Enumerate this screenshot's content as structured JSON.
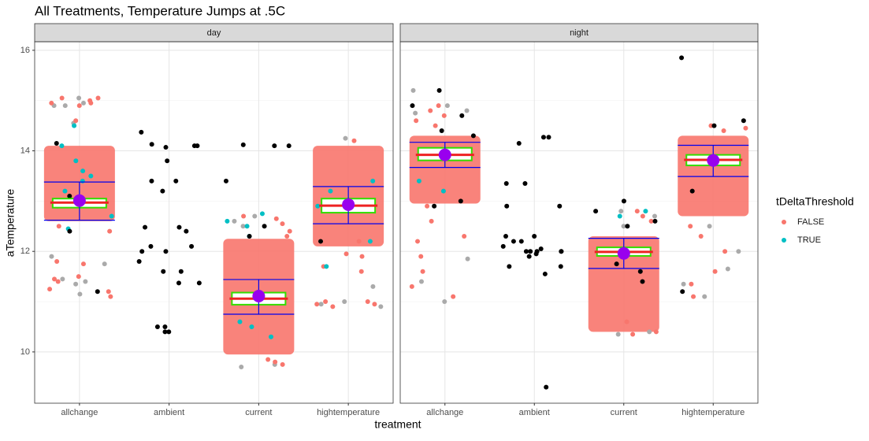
{
  "chart_data": {
    "type": "jitter-box",
    "title": "All Treatments, Temperature Jumps at .5C",
    "x_label": "treatment",
    "y_label": "aTemperature",
    "legend_title": "tDeltaThreshold",
    "series": [
      {
        "name": "FALSE",
        "color": "#F8766D"
      },
      {
        "name": "TRUE",
        "color": "#00BFC4"
      }
    ],
    "extra_colors": {
      "gray": "#aaaaaa",
      "black": "#000000"
    },
    "box_color": "#33dd00",
    "median_color": "#ee2222",
    "mean_color": "#9900ee",
    "errorbar_color": "#0000ee",
    "ylim": [
      8.98,
      16.17
    ],
    "yticks": [
      10,
      12,
      14,
      16
    ],
    "yminor": [
      11,
      13,
      15
    ],
    "grid": true,
    "panels": [
      {
        "label": "day",
        "groups": [
          {
            "category": "allchange",
            "box": [
              12.87,
              12.97,
              13.05
            ],
            "mean": 13.01,
            "errorbar": [
              12.62,
              13.38
            ],
            "spread": [
              12.6,
              14.1
            ],
            "false_points": [
              15.05,
              15.0,
              14.95,
              14.9,
              15.05,
              14.95,
              11.8,
              11.75,
              11.5,
              11.4,
              11.25,
              11.2,
              11.1,
              11.45,
              14.6,
              12.4,
              12.5
            ],
            "gray_points": [
              15.05,
              14.95,
              14.9,
              11.45,
              11.35,
              11.15,
              11.9,
              11.75,
              11.4,
              14.55,
              14.9
            ],
            "true_points": [
              14.5,
              13.6,
              13.5,
              13.2,
              12.9,
              12.7,
              13.8,
              14.1,
              13.4,
              12.45
            ],
            "black_points": [
              14.15,
              11.2,
              12.4,
              13.1
            ]
          },
          {
            "category": "ambient",
            "black_points": [
              14.37,
              14.1,
              14.13,
              14.1,
              13.8,
              13.4,
              13.4,
              13.2,
              12.4,
              12.48,
              12.48,
              12.1,
              12.0,
              12.0,
              11.8,
              11.6,
              11.6,
              11.37,
              11.37,
              10.5,
              10.5,
              10.4,
              10.4,
              12.1,
              14.07
            ]
          },
          {
            "category": "current",
            "box": [
              10.94,
              11.06,
              11.18
            ],
            "mean": 11.11,
            "errorbar": [
              10.75,
              11.44
            ],
            "spread": [
              9.95,
              12.25
            ],
            "false_points": [
              12.7,
              12.65,
              12.55,
              12.4,
              12.3,
              9.75,
              9.8,
              9.85
            ],
            "gray_points": [
              12.7,
              12.5,
              9.7,
              9.75,
              12.6
            ],
            "true_points": [
              12.75,
              12.6,
              12.5,
              12.3,
              10.6,
              10.5,
              10.3
            ],
            "black_points": [
              14.1,
              14.12,
              14.1,
              13.4,
              12.3,
              12.5
            ]
          },
          {
            "category": "hightemperature",
            "box": [
              12.77,
              12.91,
              13.05
            ],
            "mean": 12.93,
            "errorbar": [
              12.55,
              13.29
            ],
            "spread": [
              12.1,
              14.1
            ],
            "false_points": [
              14.2,
              11.95,
              11.7,
              11.0,
              10.95,
              10.9,
              10.95,
              11.0,
              11.9,
              11.6,
              12.2
            ],
            "gray_points": [
              11.0,
              10.95,
              10.9,
              14.25,
              11.3
            ],
            "true_points": [
              13.4,
              13.2,
              12.2,
              11.7,
              12.9
            ],
            "black_points": [
              12.2
            ]
          }
        ]
      },
      {
        "label": "night",
        "groups": [
          {
            "category": "allchange",
            "box": [
              13.81,
              13.92,
              14.06
            ],
            "mean": 13.92,
            "errorbar": [
              13.67,
              14.17
            ],
            "spread": [
              12.95,
              14.3
            ],
            "false_points": [
              14.8,
              14.7,
              14.6,
              14.5,
              12.9,
              12.6,
              12.3,
              11.9,
              11.6,
              11.3,
              11.1,
              12.2,
              14.9
            ],
            "gray_points": [
              15.2,
              14.9,
              14.8,
              11.85,
              11.4,
              11.0,
              14.75
            ],
            "true_points": [
              13.4,
              13.2
            ],
            "black_points": [
              15.2,
              14.9,
              14.7,
              14.4,
              13.0,
              12.9,
              14.3
            ]
          },
          {
            "category": "ambient",
            "black_points": [
              14.27,
              14.27,
              14.15,
              13.35,
              13.35,
              12.9,
              12.9,
              12.3,
              12.2,
              12.2,
              12.1,
              12.05,
              12.0,
              12.0,
              12.0,
              12.0,
              11.95,
              11.9,
              11.7,
              11.7,
              11.55,
              12.3,
              12.0,
              9.3
            ]
          },
          {
            "category": "current",
            "box": [
              11.91,
              11.99,
              12.08
            ],
            "mean": 11.96,
            "errorbar": [
              11.66,
              12.26
            ],
            "spread": [
              10.4,
              12.3
            ],
            "false_points": [
              12.8,
              12.7,
              12.6,
              10.6,
              10.4,
              10.35
            ],
            "gray_points": [
              12.8,
              12.7,
              10.4,
              10.35,
              12.5
            ],
            "true_points": [
              12.8,
              12.7
            ],
            "black_points": [
              12.8,
              12.6,
              12.5,
              11.95,
              11.75,
              11.6,
              11.4,
              13.0
            ]
          },
          {
            "category": "hightemperature",
            "box": [
              13.71,
              13.82,
              13.92
            ],
            "mean": 13.81,
            "errorbar": [
              13.49,
              14.11
            ],
            "spread": [
              12.7,
              14.3
            ],
            "false_points": [
              14.5,
              14.45,
              14.4,
              12.5,
              12.0,
              11.35,
              11.1,
              11.6,
              12.3
            ],
            "gray_points": [
              12.5,
              12.0,
              11.65,
              11.35,
              11.1
            ],
            "true_points": [],
            "black_points": [
              15.85,
              14.6,
              14.5,
              11.2,
              13.8,
              13.2
            ]
          }
        ]
      }
    ]
  }
}
